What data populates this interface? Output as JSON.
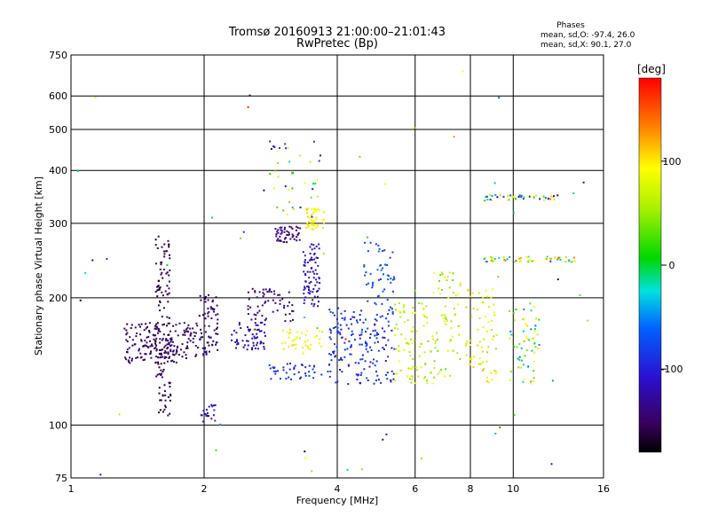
{
  "chart_data": {
    "type": "scatter",
    "title": "Tromsø 20160913 21:00:00–21:01:43",
    "subtitle": "RwPretec (Bp)",
    "xlabel": "Frequency [MHz]",
    "ylabel": "Stationary phase Virtual Height [km]",
    "xscale": "log",
    "yscale": "log",
    "xlim": [
      1,
      16
    ],
    "ylim": [
      75,
      750
    ],
    "xticks": [
      1,
      2,
      4,
      6,
      8,
      10,
      16
    ],
    "xtick_labels": [
      "1",
      "2",
      "4",
      "6",
      "8",
      "10",
      "16"
    ],
    "yticks": [
      75,
      100,
      200,
      300,
      400,
      500,
      600,
      750
    ],
    "ytick_labels": [
      "75",
      "100",
      "200",
      "300",
      "400",
      "500",
      "600",
      "750"
    ],
    "grid": true,
    "stats": {
      "heading": "Phases",
      "line_o": "mean, sd,O: -97.4, 26.0",
      "line_x": "mean, sd,X:  90.1, 27.0"
    },
    "colorbar": {
      "label": "[deg]",
      "range": [
        -180,
        180
      ],
      "ticks": [
        100,
        0,
        -100
      ],
      "tick_labels": [
        "100",
        "0",
        "-100"
      ],
      "colormap": "rainbow"
    },
    "clusters": [
      {
        "f": [
          1.55,
          1.68
        ],
        "h": [
          105,
          280
        ],
        "phase": [
          -170,
          -140
        ],
        "n": 130
      },
      {
        "f": [
          1.32,
          1.95
        ],
        "h": [
          140,
          175
        ],
        "phase": [
          -165,
          -130
        ],
        "n": 190
      },
      {
        "f": [
          1.95,
          2.15
        ],
        "h": [
          145,
          205
        ],
        "phase": [
          -160,
          -130
        ],
        "n": 70
      },
      {
        "f": [
          1.95,
          2.15
        ],
        "h": [
          100,
          112
        ],
        "phase": [
          -130,
          -90
        ],
        "n": 20
      },
      {
        "f": [
          2.3,
          2.75
        ],
        "h": [
          150,
          175
        ],
        "phase": [
          -130,
          -100
        ],
        "n": 60
      },
      {
        "f": [
          2.5,
          3.2
        ],
        "h": [
          176,
          210
        ],
        "phase": [
          -150,
          -120
        ],
        "n": 60
      },
      {
        "f": [
          2.9,
          3.3
        ],
        "h": [
          270,
          295
        ],
        "phase": [
          -150,
          -130
        ],
        "n": 50
      },
      {
        "f": [
          3.35,
          3.65
        ],
        "h": [
          190,
          270
        ],
        "phase": [
          -130,
          -100
        ],
        "n": 80
      },
      {
        "f": [
          3.4,
          3.75
        ],
        "h": [
          290,
          325
        ],
        "phase": [
          90,
          110
        ],
        "n": 50
      },
      {
        "f": [
          3.0,
          3.7
        ],
        "h": [
          150,
          170
        ],
        "phase": [
          80,
          110
        ],
        "n": 40
      },
      {
        "f": [
          2.8,
          3.6
        ],
        "h": [
          128,
          140
        ],
        "phase": [
          -100,
          -80
        ],
        "n": 40
      },
      {
        "f": [
          3.8,
          5.4
        ],
        "h": [
          125,
          190
        ],
        "phase": [
          -110,
          -70
        ],
        "n": 180
      },
      {
        "f": [
          4.6,
          5.4
        ],
        "h": [
          190,
          270
        ],
        "phase": [
          -90,
          -50
        ],
        "n": 50
      },
      {
        "f": [
          5.4,
          6.4
        ],
        "h": [
          125,
          195
        ],
        "phase": [
          40,
          100
        ],
        "n": 80
      },
      {
        "f": [
          6.5,
          7.6
        ],
        "h": [
          125,
          230
        ],
        "phase": [
          30,
          110
        ],
        "n": 70
      },
      {
        "f": [
          7.8,
          9.2
        ],
        "h": [
          125,
          210
        ],
        "phase": [
          60,
          120
        ],
        "n": 70
      },
      {
        "f": [
          9.8,
          11.5
        ],
        "h": [
          125,
          195
        ],
        "phase": [
          -60,
          110
        ],
        "n": 60
      },
      {
        "f": [
          8.6,
          13.0
        ],
        "h": [
          340,
          350
        ],
        "phase": [
          -140,
          140
        ],
        "n": 40
      },
      {
        "f": [
          8.6,
          13.8
        ],
        "h": [
          243,
          250
        ],
        "phase": [
          -70,
          160
        ],
        "n": 50
      },
      {
        "f": [
          2.8,
          3.7
        ],
        "h": [
          310,
          470
        ],
        "phase": [
          -140,
          110
        ],
        "n": 40
      },
      {
        "f": [
          1.0,
          15.0
        ],
        "h": [
          75,
          700
        ],
        "phase": [
          -180,
          180
        ],
        "n": 60
      }
    ]
  }
}
